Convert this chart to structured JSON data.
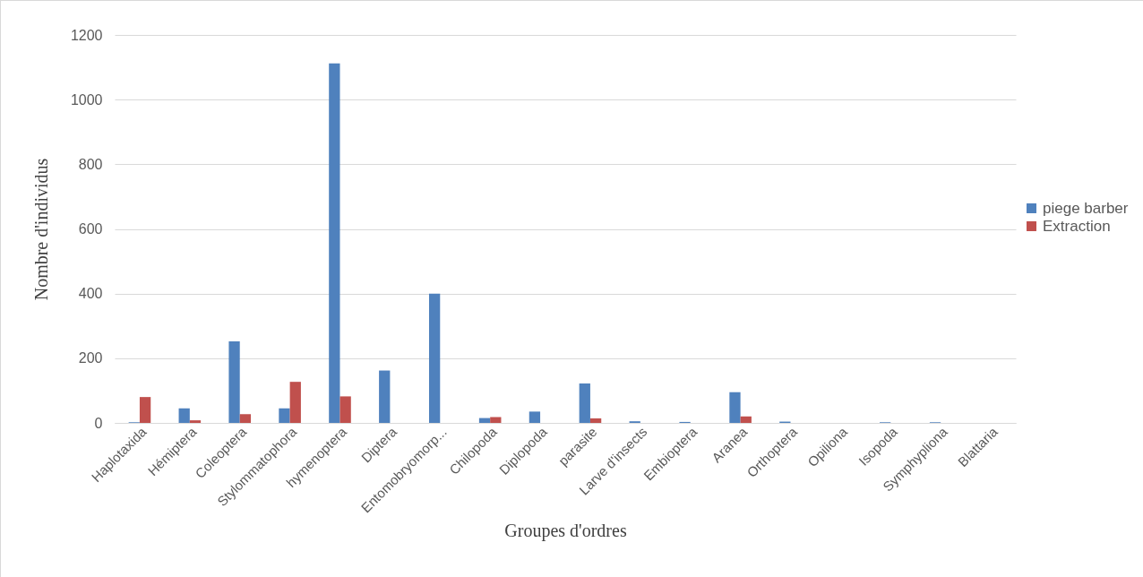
{
  "chart_data": {
    "type": "bar",
    "xlabel": "Groupes d'ordres",
    "ylabel": "Nombre d'individus",
    "categories": [
      "Haplotaxida",
      "Hémiptera",
      "Coleoptera",
      "Stylommatophora",
      "hymenoptera",
      "Diptera",
      "Entomobryomorp...",
      "Chilopoda",
      "Diplopoda",
      "parasite",
      "Larve d'insects",
      "Embioptera",
      "Aranea",
      "Orthoptera",
      "Opiliona",
      "Isopoda",
      "Symphypliona",
      "Blattaria"
    ],
    "series": [
      {
        "name": "piege barber",
        "color": "#4f81bd",
        "values": [
          2,
          45,
          252,
          45,
          1112,
          162,
          400,
          15,
          35,
          122,
          5,
          3,
          95,
          4,
          0,
          2,
          2,
          0
        ]
      },
      {
        "name": "Extraction",
        "color": "#c0504d",
        "values": [
          80,
          8,
          27,
          127,
          82,
          null,
          0,
          18,
          0,
          14,
          0,
          0,
          20,
          0,
          0,
          0,
          0,
          0
        ]
      }
    ],
    "ylim": [
      0,
      1200
    ],
    "yticks": [
      0,
      200,
      400,
      600,
      800,
      1000,
      1200
    ],
    "grid": "y",
    "legend": "right"
  }
}
